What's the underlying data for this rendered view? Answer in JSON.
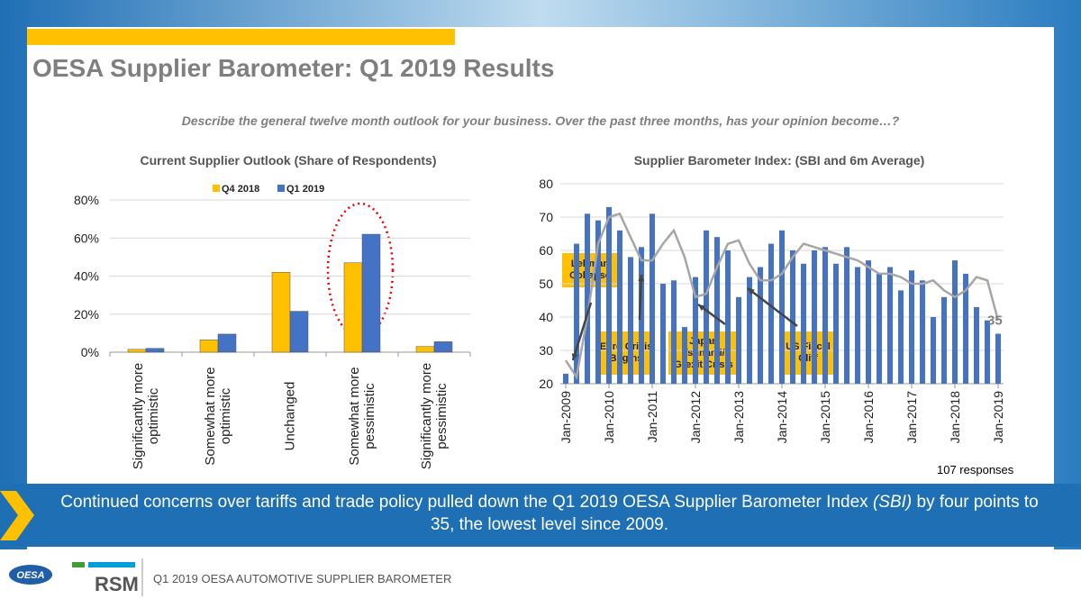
{
  "title": "OESA Supplier Barometer: Q1 2019 Results",
  "subtitle": "Describe the general twelve month outlook for your business. Over the past three months, has your opinion become…?",
  "chart_data": [
    {
      "type": "bar",
      "title": "Current Supplier Outlook (Share of Respondents)",
      "categories": [
        "Significantly more optimistic",
        "Somewhat more optimistic",
        "Unchanged",
        "Somewhat more pessimistic",
        "Significantly more pessimistic"
      ],
      "series": [
        {
          "name": "Q4 2018",
          "color": "#ffc000",
          "values": [
            1.5,
            6.5,
            42,
            47,
            3
          ]
        },
        {
          "name": "Q1 2019",
          "color": "#4472c4",
          "values": [
            2,
            9.5,
            21.5,
            62,
            5.5
          ]
        }
      ],
      "ylim": [
        0,
        80
      ],
      "yticks": [
        {
          "value": 0,
          "label": "0%"
        },
        {
          "value": 20,
          "label": "20%"
        },
        {
          "value": 40,
          "label": "40%"
        },
        {
          "value": 60,
          "label": "60%"
        },
        {
          "value": 80,
          "label": "80%"
        }
      ],
      "grid": true,
      "legend": "top"
    },
    {
      "type": "bar-line",
      "title": "Supplier Barometer Index: (SBI and 6m Average)",
      "categories": [
        "Jan-2009",
        null,
        null,
        null,
        "Jan-2010",
        null,
        null,
        null,
        "Jan-2011",
        null,
        null,
        null,
        "Jan-2012",
        null,
        null,
        null,
        "Jan-2013",
        null,
        null,
        null,
        "Jan-2014",
        null,
        null,
        null,
        "Jan-2015",
        null,
        null,
        null,
        "Jan-2016",
        null,
        null,
        null,
        "Jan-2017",
        null,
        null,
        null,
        "Jan-2018",
        null,
        null,
        null,
        "Jan-2019"
      ],
      "series": [
        {
          "type": "bar",
          "color": "#4472c4",
          "values": [
            23,
            62,
            71,
            69,
            73,
            66,
            58,
            61,
            71,
            50,
            51,
            37,
            52,
            66,
            64,
            60,
            46,
            52,
            55,
            62,
            66,
            60,
            56,
            60,
            61,
            56,
            61,
            55,
            57,
            53,
            55,
            48,
            54,
            51,
            40,
            46,
            57,
            53,
            43,
            39,
            35
          ]
        },
        {
          "type": "line",
          "color": "#a6a6a6",
          "values": [
            27,
            22,
            40,
            62,
            70,
            71,
            64,
            57,
            57,
            62,
            66,
            58,
            46,
            47,
            55,
            62,
            63,
            56,
            51,
            51,
            53,
            58,
            62,
            61,
            60,
            59,
            58,
            57,
            55,
            53,
            53,
            52,
            50,
            50,
            51,
            48,
            46,
            48,
            52,
            51,
            39
          ]
        }
      ],
      "ylim": [
        20,
        80
      ],
      "yticks": [
        20,
        30,
        40,
        50,
        60,
        70,
        80
      ],
      "grid": true,
      "annotations": [
        "Lehman Collapse",
        "Euro Crisis Begins",
        "Japan Tsunami/ Grexit Crisis",
        "US Fiscal Cliff"
      ]
    }
  ],
  "responses": "107 responses",
  "banner": {
    "before": "Continued concerns over tariffs and trade policy pulled down the Q1 2019 OESA Supplier Barometer Index ",
    "emph": "(SBI)",
    "after": " by four points to 35, the lowest level since 2009."
  },
  "footer": {
    "logo1": "OESA",
    "logo2": "RSM",
    "text": "Q1 2019 OESA AUTOMOTIVE SUPPLIER BAROMETER"
  }
}
